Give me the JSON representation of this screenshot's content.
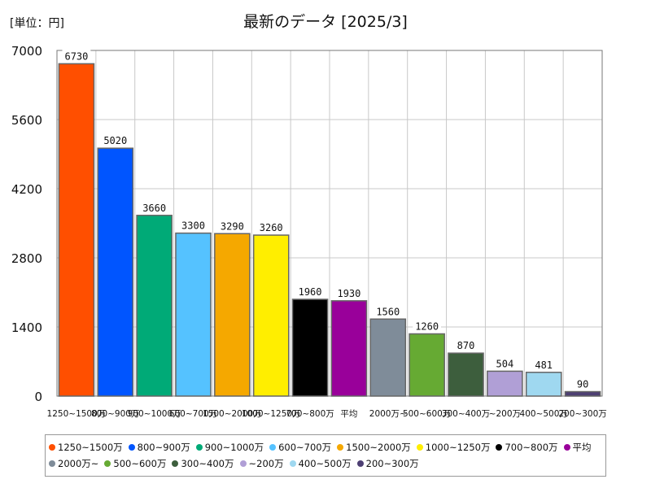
{
  "unit_label": "[単位：円]",
  "chart_data": {
    "type": "bar",
    "title": "最新のデータ [2025/3]",
    "xlabel": "",
    "ylabel": "",
    "ylim": [
      0,
      7000
    ],
    "yticks": [
      0,
      1400,
      2800,
      4200,
      5600,
      7000
    ],
    "grid": true,
    "legend_position": "bottom",
    "categories": [
      "1250~1500万",
      "800~900万",
      "900~1000万",
      "600~700万",
      "1500~2000万",
      "1000~1250万",
      "700~800万",
      "平均",
      "2000万~",
      "500~600万",
      "300~400万",
      "~200万",
      "400~500万",
      "200~300万"
    ],
    "values": [
      6730,
      5020,
      3660,
      3300,
      3290,
      3260,
      1960,
      1930,
      1560,
      1260,
      870,
      504,
      481,
      90
    ],
    "colors": [
      "#ff4f00",
      "#0055ff",
      "#00aa77",
      "#55c2ff",
      "#f5a800",
      "#ffee00",
      "#000000",
      "#99009a",
      "#7f8c99",
      "#66aa33",
      "#3d5e3d",
      "#b09fd6",
      "#9fd8f0",
      "#4d3f73"
    ],
    "x_tick_labels": [
      "1250~1500万",
      "800~900万",
      "900~1000万",
      "600~700万",
      "1500~2000万",
      "1000~1250万",
      "700~800万",
      "平均",
      "2000万~",
      "500~600万",
      "300~400万",
      "~200万",
      "400~500万",
      "200~300万"
    ],
    "legend": [
      "1250~1500万",
      "800~900万",
      "900~1000万",
      "600~700万",
      "1500~2000万",
      "1000~1250万",
      "700~800万",
      "平均",
      "2000万~",
      "500~600万",
      "300~400万",
      "~200万",
      "400~500万",
      "200~300万"
    ]
  }
}
